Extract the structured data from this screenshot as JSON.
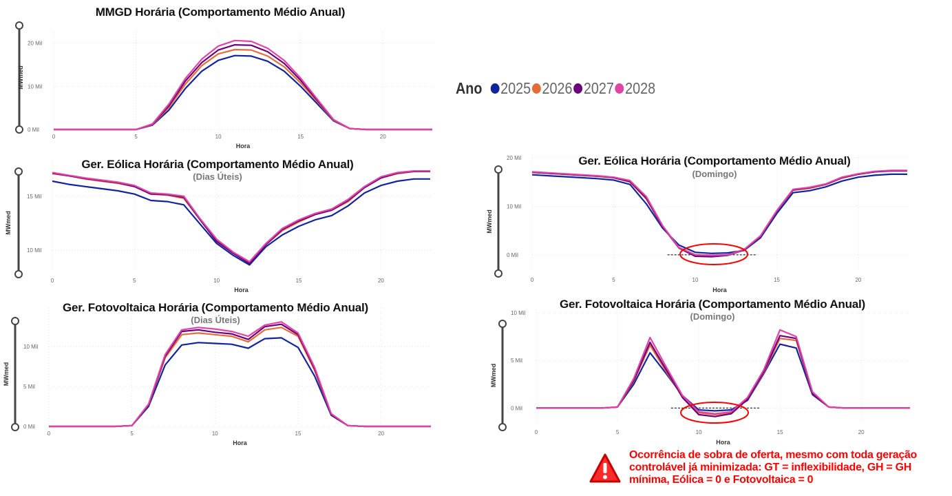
{
  "legend": {
    "title": "Ano",
    "items": [
      {
        "label": "2025",
        "color": "#12239e"
      },
      {
        "label": "2026",
        "color": "#e66c37"
      },
      {
        "label": "2027",
        "color": "#6b007b"
      },
      {
        "label": "2028",
        "color": "#e044a7"
      }
    ]
  },
  "warning": {
    "icon": "warning-triangle-icon",
    "text": "Ocorrência de sobra de oferta, mesmo com toda geração controlável já minimizada: GT = inflexibilidade, GH = GH mínima, Eólica = 0 e Fotovoltaica = 0"
  },
  "chart_data": [
    {
      "id": "mmgd",
      "type": "line",
      "title": "MMGD Horária (Comportamento Médio Anual)",
      "subtitle": "",
      "xlabel": "Hora",
      "ylabel": "MWmed",
      "x": [
        0,
        1,
        2,
        3,
        4,
        5,
        6,
        7,
        8,
        9,
        10,
        11,
        12,
        13,
        14,
        15,
        16,
        17,
        18,
        19,
        20,
        21,
        22,
        23
      ],
      "xlim": [
        0,
        23
      ],
      "ylim": [
        0,
        22000
      ],
      "xticks": [
        {
          "v": 0,
          "label": "0"
        },
        {
          "v": 5,
          "label": "5"
        },
        {
          "v": 10,
          "label": "10"
        },
        {
          "v": 15,
          "label": "15"
        },
        {
          "v": 20,
          "label": "20"
        }
      ],
      "yticks": [
        {
          "v": 0,
          "label": "0 Mil"
        },
        {
          "v": 10000,
          "label": "10 Mil"
        },
        {
          "v": 20000,
          "label": "20 Mil"
        }
      ],
      "series": [
        {
          "name": "2025",
          "color": "#12239e",
          "values": [
            0,
            0,
            0,
            0,
            0,
            0,
            1000,
            4500,
            9500,
            13500,
            16000,
            17100,
            17000,
            15800,
            13500,
            10000,
            6000,
            2000,
            200,
            0,
            0,
            0,
            0,
            0
          ]
        },
        {
          "name": "2026",
          "color": "#e66c37",
          "values": [
            0,
            0,
            0,
            0,
            0,
            0,
            1100,
            5100,
            10500,
            14800,
            17500,
            18500,
            18400,
            17000,
            14500,
            10800,
            6500,
            2100,
            200,
            0,
            0,
            0,
            0,
            0
          ]
        },
        {
          "name": "2027",
          "color": "#6b007b",
          "values": [
            0,
            0,
            0,
            0,
            0,
            0,
            1200,
            5500,
            11200,
            15500,
            18400,
            19600,
            19500,
            18000,
            15300,
            11400,
            6800,
            2200,
            200,
            0,
            0,
            0,
            0,
            0
          ]
        },
        {
          "name": "2028",
          "color": "#e044a7",
          "values": [
            0,
            0,
            0,
            0,
            0,
            0,
            1300,
            5900,
            11800,
            16300,
            19300,
            20600,
            20400,
            18800,
            16000,
            11900,
            7100,
            2300,
            200,
            0,
            0,
            0,
            0,
            0
          ]
        }
      ]
    },
    {
      "id": "eolica-uteis",
      "type": "line",
      "title": "Ger. Eólica Horária (Comportamento Médio Anual)",
      "subtitle": "(Dias Úteis)",
      "xlabel": "Hora",
      "ylabel": "MWmed",
      "x": [
        0,
        1,
        2,
        3,
        4,
        5,
        6,
        7,
        8,
        9,
        10,
        11,
        12,
        13,
        14,
        15,
        16,
        17,
        18,
        19,
        20,
        21,
        22,
        23
      ],
      "xlim": [
        0,
        23
      ],
      "ylim": [
        8000,
        18000
      ],
      "xticks": [
        {
          "v": 0,
          "label": "0"
        },
        {
          "v": 5,
          "label": "5"
        },
        {
          "v": 10,
          "label": "10"
        },
        {
          "v": 15,
          "label": "15"
        },
        {
          "v": 20,
          "label": "20"
        }
      ],
      "yticks": [
        {
          "v": 10000,
          "label": "10 Mil"
        },
        {
          "v": 15000,
          "label": "15 Mil"
        }
      ],
      "series": [
        {
          "name": "2025",
          "color": "#12239e",
          "values": [
            16400,
            16100,
            15900,
            15700,
            15500,
            15200,
            14600,
            14500,
            14200,
            12400,
            10600,
            9500,
            8600,
            10300,
            11400,
            12200,
            12800,
            13200,
            14100,
            15300,
            16000,
            16400,
            16600,
            16600
          ]
        },
        {
          "name": "2026",
          "color": "#e66c37",
          "values": [
            17100,
            16900,
            16600,
            16400,
            16200,
            15900,
            15200,
            15100,
            14800,
            12800,
            10800,
            9700,
            8800,
            10500,
            11800,
            12600,
            13300,
            13700,
            14500,
            15800,
            16700,
            17100,
            17300,
            17300
          ]
        },
        {
          "name": "2027",
          "color": "#6b007b",
          "values": [
            17150,
            16900,
            16650,
            16450,
            16250,
            15900,
            15200,
            15150,
            14900,
            12800,
            10800,
            9700,
            8750,
            10500,
            11900,
            12700,
            13300,
            13700,
            14600,
            15800,
            16700,
            17150,
            17300,
            17300
          ]
        },
        {
          "name": "2028",
          "color": "#e044a7",
          "values": [
            17200,
            16950,
            16700,
            16500,
            16300,
            16000,
            15300,
            15200,
            15000,
            12900,
            11000,
            9800,
            8900,
            10600,
            12000,
            12800,
            13400,
            13800,
            14700,
            15900,
            16800,
            17200,
            17350,
            17350
          ]
        }
      ]
    },
    {
      "id": "eolica-domingo",
      "type": "line",
      "title": "Ger. Eólica Horária (Comportamento Médio Anual)",
      "subtitle": "(Domingo)",
      "xlabel": "Hora",
      "ylabel": "MWmed",
      "x": [
        0,
        1,
        2,
        3,
        4,
        5,
        6,
        7,
        8,
        9,
        10,
        11,
        12,
        13,
        14,
        15,
        16,
        17,
        18,
        19,
        20,
        21,
        22,
        23
      ],
      "xlim": [
        0,
        23
      ],
      "ylim": [
        -3000,
        20000
      ],
      "xticks": [
        {
          "v": 0,
          "label": "0"
        },
        {
          "v": 5,
          "label": "5"
        },
        {
          "v": 10,
          "label": "10"
        },
        {
          "v": 15,
          "label": "15"
        },
        {
          "v": 20,
          "label": "20"
        }
      ],
      "yticks": [
        {
          "v": 0,
          "label": "0 Mil"
        },
        {
          "v": 10000,
          "label": "10 Mil"
        },
        {
          "v": 20000,
          "label": "20 Mil"
        }
      ],
      "series": [
        {
          "name": "2025",
          "color": "#12239e",
          "values": [
            16500,
            16300,
            16100,
            15900,
            15700,
            15400,
            14500,
            10500,
            5500,
            2000,
            500,
            300,
            400,
            900,
            3500,
            8500,
            12800,
            13200,
            14000,
            15200,
            16000,
            16400,
            16600,
            16600
          ]
        },
        {
          "name": "2026",
          "color": "#e66c37",
          "values": [
            17000,
            16800,
            16600,
            16400,
            16200,
            15900,
            15000,
            11500,
            5800,
            1500,
            0,
            -200,
            0,
            1000,
            3800,
            9000,
            13300,
            13700,
            14500,
            15800,
            16600,
            17100,
            17300,
            17300
          ]
        },
        {
          "name": "2027",
          "color": "#6b007b",
          "values": [
            17000,
            16800,
            16600,
            16400,
            16200,
            15900,
            15100,
            11700,
            5800,
            1400,
            -300,
            -400,
            -100,
            1000,
            3800,
            9000,
            13400,
            13800,
            14500,
            15900,
            16600,
            17100,
            17300,
            17300
          ]
        },
        {
          "name": "2028",
          "color": "#e044a7",
          "values": [
            17100,
            16900,
            16700,
            16500,
            16300,
            16000,
            15300,
            12000,
            6000,
            1500,
            0,
            -100,
            0,
            1100,
            3900,
            9100,
            13500,
            13900,
            14600,
            16000,
            16700,
            17200,
            17400,
            17400
          ]
        }
      ]
    },
    {
      "id": "fv-uteis",
      "type": "line",
      "title": "Ger. Fotovoltaica Horária (Comportamento Médio Anual)",
      "subtitle": "(Dias Úteis)",
      "xlabel": "Hora",
      "ylabel": "MWmed",
      "x": [
        0,
        1,
        2,
        3,
        4,
        5,
        6,
        7,
        8,
        9,
        10,
        11,
        12,
        13,
        14,
        15,
        16,
        17,
        18,
        19,
        20,
        21,
        22,
        23
      ],
      "xlim": [
        0,
        23
      ],
      "ylim": [
        0,
        14500
      ],
      "xticks": [
        {
          "v": 0,
          "label": "0"
        },
        {
          "v": 5,
          "label": "5"
        },
        {
          "v": 10,
          "label": "10"
        },
        {
          "v": 15,
          "label": "15"
        },
        {
          "v": 20,
          "label": "20"
        }
      ],
      "yticks": [
        {
          "v": 0,
          "label": "0 Mil"
        },
        {
          "v": 5000,
          "label": "5 Mil"
        },
        {
          "v": 10000,
          "label": "10 Mil"
        }
      ],
      "series": [
        {
          "name": "2025",
          "color": "#12239e",
          "values": [
            0,
            0,
            0,
            0,
            0,
            100,
            2500,
            7700,
            10200,
            10500,
            10400,
            10300,
            9800,
            11000,
            11100,
            9900,
            6300,
            1400,
            100,
            0,
            0,
            0,
            0,
            0
          ]
        },
        {
          "name": "2026",
          "color": "#e66c37",
          "values": [
            0,
            0,
            0,
            0,
            0,
            100,
            2700,
            8600,
            11500,
            11700,
            11500,
            11300,
            10600,
            12100,
            12400,
            11300,
            7000,
            1500,
            100,
            0,
            0,
            0,
            0,
            0
          ]
        },
        {
          "name": "2027",
          "color": "#6b007b",
          "values": [
            0,
            0,
            0,
            0,
            0,
            100,
            2700,
            8800,
            11900,
            12100,
            11800,
            11600,
            10900,
            12500,
            12800,
            11500,
            7200,
            1500,
            100,
            0,
            0,
            0,
            0,
            0
          ]
        },
        {
          "name": "2028",
          "color": "#e044a7",
          "values": [
            0,
            0,
            0,
            0,
            0,
            100,
            2800,
            9000,
            12100,
            12400,
            12200,
            11900,
            11300,
            12700,
            13100,
            11700,
            7400,
            1600,
            100,
            0,
            0,
            0,
            0,
            0
          ]
        }
      ]
    },
    {
      "id": "fv-domingo",
      "type": "line",
      "title": "Ger. Fotovoltaica Horária (Comportamento Médio Anual)",
      "subtitle": "(Domingo)",
      "xlabel": "Hora",
      "ylabel": "MWmed",
      "x": [
        0,
        1,
        2,
        3,
        4,
        5,
        6,
        7,
        8,
        9,
        10,
        11,
        12,
        13,
        14,
        15,
        16,
        17,
        18,
        19,
        20,
        21,
        22,
        23
      ],
      "xlim": [
        0,
        23
      ],
      "ylim": [
        -1500,
        10000
      ],
      "xticks": [
        {
          "v": 0,
          "label": "0"
        },
        {
          "v": 5,
          "label": "5"
        },
        {
          "v": 10,
          "label": "10"
        },
        {
          "v": 15,
          "label": "15"
        },
        {
          "v": 20,
          "label": "20"
        }
      ],
      "yticks": [
        {
          "v": 0,
          "label": "0 Mil"
        },
        {
          "v": 5000,
          "label": "5 Mil"
        },
        {
          "v": 10000,
          "label": "10 Mil"
        }
      ],
      "series": [
        {
          "name": "2025",
          "color": "#12239e",
          "values": [
            0,
            0,
            0,
            0,
            0,
            100,
            2500,
            5800,
            3600,
            1300,
            -200,
            -300,
            -200,
            800,
            3600,
            6700,
            6300,
            1400,
            100,
            0,
            0,
            0,
            0,
            0
          ]
        },
        {
          "name": "2026",
          "color": "#e66c37",
          "values": [
            0,
            0,
            0,
            0,
            0,
            100,
            2800,
            6600,
            3800,
            1200,
            -500,
            -700,
            -500,
            900,
            3700,
            7300,
            7100,
            1500,
            100,
            0,
            0,
            0,
            0,
            0
          ]
        },
        {
          "name": "2027",
          "color": "#6b007b",
          "values": [
            0,
            0,
            0,
            0,
            0,
            100,
            2900,
            6900,
            4000,
            1100,
            -700,
            -900,
            -600,
            900,
            3800,
            7600,
            7300,
            1500,
            100,
            0,
            0,
            0,
            0,
            0
          ]
        },
        {
          "name": "2028",
          "color": "#e044a7",
          "values": [
            0,
            0,
            0,
            0,
            0,
            100,
            3100,
            7400,
            4300,
            1300,
            -400,
            -600,
            -400,
            1100,
            4000,
            8200,
            7500,
            1700,
            100,
            0,
            0,
            0,
            0,
            0
          ]
        }
      ]
    }
  ]
}
